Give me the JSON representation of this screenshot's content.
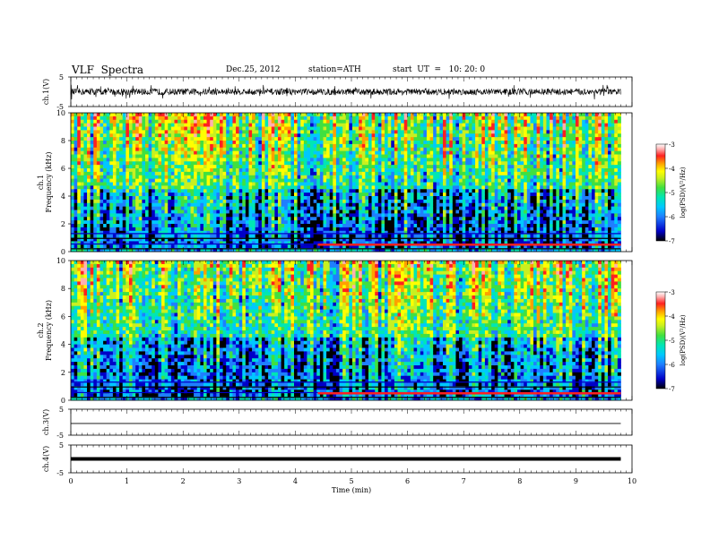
{
  "header": {
    "title": "VLF  Spectra",
    "date": "Dec.25, 2012",
    "station": "station=ATH",
    "start": "start  UT  =   10: 20: 0"
  },
  "chart_data": [
    {
      "type": "line",
      "ylabel": "ch.1(V)",
      "ylim": [
        -5,
        5
      ],
      "y_ticks": [
        "5",
        "-5"
      ],
      "description_series": "noisy waveform around 0 V, spikes to about ±3 V"
    },
    {
      "type": "heatmap",
      "ylabel": "ch.1\nFrequency (kHz)",
      "ylim": [
        0,
        10
      ],
      "y_ticks": [
        "0",
        "2",
        "4",
        "6",
        "8",
        "10"
      ],
      "colorbar": {
        "label": "log(PSD)(V²/Hz)",
        "range": [
          -7,
          -3
        ],
        "ticks": [
          "-3",
          "-4",
          "-5",
          "-6",
          "-7"
        ]
      }
    },
    {
      "type": "heatmap",
      "ylabel": "ch.2\nFrequency (kHz)",
      "ylim": [
        0,
        10
      ],
      "y_ticks": [
        "0",
        "2",
        "4",
        "6",
        "8",
        "10"
      ],
      "colorbar": {
        "label": "log(PSD)(V²/Hz)",
        "range": [
          -7,
          -3
        ],
        "ticks": [
          "-3",
          "-4",
          "-5",
          "-6",
          "-7"
        ]
      }
    },
    {
      "type": "line",
      "ylabel": "ch.3(V)",
      "ylim": [
        -5,
        5
      ],
      "y_ticks": [
        "5",
        "-5"
      ],
      "level": -0.5
    },
    {
      "type": "line",
      "ylabel": "ch.4(V)",
      "ylim": [
        -5,
        5
      ],
      "y_ticks": [
        "5",
        "-5"
      ],
      "level": 0
    }
  ],
  "x_axis": {
    "xlabel": "Time  (min)",
    "xlim": [
      0,
      10
    ],
    "ticks": [
      "0",
      "1",
      "2",
      "3",
      "4",
      "5",
      "6",
      "7",
      "8",
      "9",
      "10"
    ],
    "data_end": 9.8
  },
  "colors": {
    "scale": [
      "#000000",
      "#0000c8",
      "#1f7fff",
      "#00c8ff",
      "#00e6b4",
      "#40e040",
      "#c8f020",
      "#ffff00",
      "#ffa000",
      "#ff2020",
      "#ffb0b0",
      "#ffffff"
    ]
  }
}
